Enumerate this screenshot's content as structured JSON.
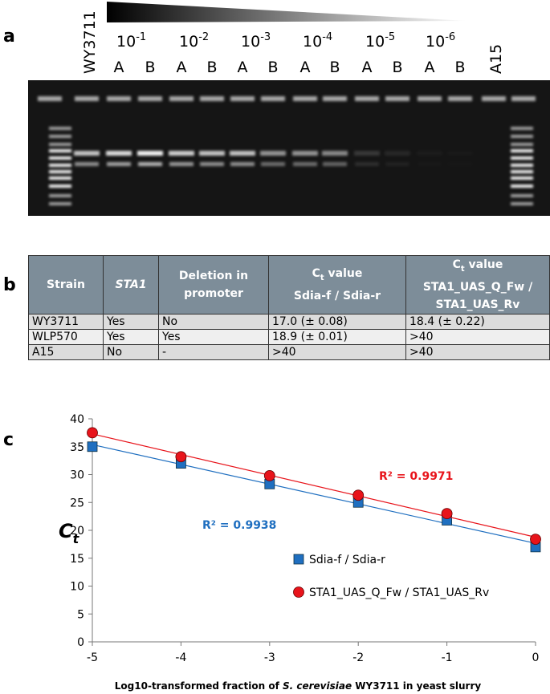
{
  "panel_labels": [
    "a",
    "b",
    "c"
  ],
  "gel": {
    "strain_left": "WY3711",
    "dilutions": [
      {
        "base": "10",
        "exponent": "-1"
      },
      {
        "base": "10",
        "exponent": "-2"
      },
      {
        "base": "10",
        "exponent": "-3"
      },
      {
        "base": "10",
        "exponent": "-4"
      },
      {
        "base": "10",
        "exponent": "-5"
      },
      {
        "base": "10",
        "exponent": "-6"
      }
    ],
    "replicates": [
      "A",
      "B",
      "A",
      "B",
      "A",
      "B",
      "A",
      "B",
      "A",
      "B",
      "A",
      "B"
    ],
    "strain_right": "A15"
  },
  "table": {
    "header": {
      "strain": "Strain",
      "gene": "STA1",
      "deletion": "Deletion in promoter",
      "ct1": {
        "symbol": "C",
        "subscript": "t",
        "word": "value",
        "primers": "Sdia-f / Sdia-r"
      },
      "ct2": {
        "symbol": "C",
        "subscript": "t",
        "word": "value",
        "primers": "STA1_UAS_Q_Fw / STA1_UAS_Rv"
      }
    },
    "rows": [
      [
        "WY3711",
        "Yes",
        "No",
        "17.0 (± 0.08)",
        "18.4 (± 0.22)"
      ],
      [
        "WLP570",
        "Yes",
        "Yes",
        "18.9 (± 0.01)",
        ">40"
      ],
      [
        "A15",
        "No",
        "-",
        ">40",
        ">40"
      ]
    ]
  },
  "chart_data": {
    "type": "scatter",
    "x": [
      -5,
      -4,
      -3,
      -2,
      -1,
      0
    ],
    "xlim": [
      -5,
      0
    ],
    "xticks": [
      -5,
      -4,
      -3,
      -2,
      -1,
      0
    ],
    "ylim": [
      0,
      40
    ],
    "yticks": [
      0,
      5,
      10,
      15,
      20,
      25,
      30,
      35,
      40
    ],
    "x_label": {
      "before": "Log10-transformed fraction of ",
      "italic": "S. cerevisiae",
      "after": " WY3711 in yeast slurry"
    },
    "y_label": {
      "symbol": "C",
      "subscript": "t"
    },
    "series": [
      {
        "name": "Sdia-f / Sdia-r",
        "color": "#1f6fc0",
        "marker": "square",
        "values": [
          35,
          32,
          28.3,
          25,
          21.8,
          17
        ],
        "trendline": true,
        "r2_label": "R² = 0.9938"
      },
      {
        "name": "STA1_UAS_Q_Fw / STA1_UAS_Rv",
        "color": "#e8141b",
        "marker": "circle",
        "values": [
          37.5,
          33.2,
          29.8,
          26.3,
          23,
          18.4
        ],
        "trendline": true,
        "r2_label": "R² = 0.9971"
      }
    ]
  }
}
